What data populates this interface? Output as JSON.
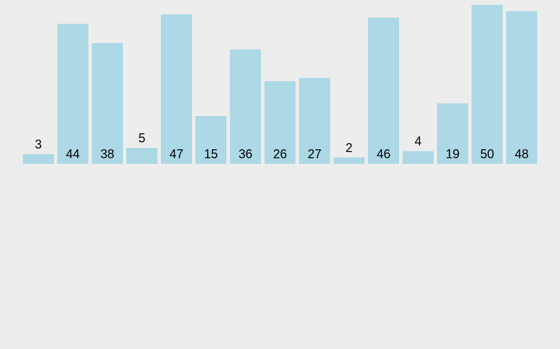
{
  "chart_data": {
    "type": "bar",
    "values": [
      3,
      44,
      38,
      5,
      47,
      15,
      36,
      26,
      27,
      2,
      46,
      4,
      19,
      50,
      48
    ],
    "data_labels": [
      "3",
      "44",
      "38",
      "5",
      "47",
      "15",
      "36",
      "26",
      "27",
      "2",
      "46",
      "4",
      "19",
      "50",
      "48"
    ],
    "bar_color": "#add8e6",
    "background_color": "#ededed",
    "label_color": "#000000",
    "axes": false,
    "grid": false,
    "ylim": [
      0,
      50
    ]
  }
}
